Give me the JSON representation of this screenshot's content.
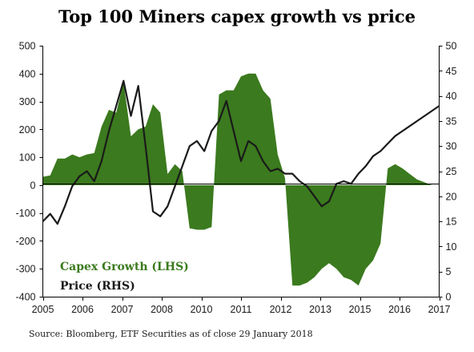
{
  "chart_data": {
    "type": "area",
    "title": "Top 100 Miners capex growth vs price",
    "source": "Source: Bloomberg, ETF Securities as of close 29 January 2018",
    "x_ticks": [
      "2005",
      "2006",
      "2007",
      "2008",
      "2010",
      "2011",
      "2012",
      "2013",
      "2015",
      "2016",
      "2017"
    ],
    "left_axis": {
      "ylim": [
        -400,
        500
      ],
      "ticks": [
        "500",
        "400",
        "300",
        "200",
        "100",
        "0",
        "-100",
        "-200",
        "-300",
        "-400"
      ]
    },
    "right_axis": {
      "ylim": [
        0,
        50
      ],
      "ticks": [
        "50",
        "45",
        "40",
        "35",
        "30",
        "25",
        "20",
        "15",
        "10",
        "5",
        "0"
      ]
    },
    "grid": false,
    "legend_position": "bottom-left",
    "colors": {
      "capex": "#3b7a1e",
      "price": "#1a1a1a",
      "capex_label": "#3b7a1e",
      "price_label": "#1a1a1a"
    },
    "series": [
      {
        "name": "Capex Growth (LHS)",
        "axis": "left",
        "x": [
          0,
          0.25,
          0.5,
          0.75,
          1,
          1.25,
          1.5,
          1.75,
          2,
          2.25,
          2.5,
          2.75,
          3,
          3.25,
          3.5,
          3.75,
          4,
          4.25,
          4.5,
          4.75,
          5,
          5.25,
          5.5,
          5.75,
          6,
          6.25,
          6.5,
          6.75,
          7,
          7.25,
          7.5,
          7.75,
          8,
          8.25,
          8.5,
          8.75,
          9,
          9.25,
          9.5,
          9.75,
          10,
          10.25,
          10.5,
          10.75,
          11,
          11.25,
          11.5,
          11.75,
          12,
          12.25,
          12.5,
          12.75,
          13,
          13.25,
          13.5
        ],
        "values": [
          30,
          35,
          95,
          95,
          110,
          100,
          110,
          115,
          210,
          270,
          260,
          370,
          175,
          200,
          210,
          290,
          260,
          40,
          75,
          50,
          -155,
          -160,
          -160,
          -150,
          325,
          340,
          340,
          390,
          400,
          400,
          340,
          310,
          110,
          25,
          -360,
          -360,
          -350,
          -330,
          -300,
          -280,
          -300,
          -330,
          -340,
          -360,
          -300,
          -270,
          -210,
          60,
          75,
          60,
          40,
          20,
          10,
          0,
          0
        ]
      },
      {
        "name": "Price (RHS)",
        "axis": "right",
        "x": [
          0,
          0.25,
          0.5,
          0.75,
          1,
          1.25,
          1.5,
          1.75,
          2,
          2.25,
          2.5,
          2.75,
          3,
          3.25,
          3.5,
          3.75,
          4,
          4.25,
          4.5,
          4.75,
          5,
          5.25,
          5.5,
          5.75,
          6,
          6.25,
          6.5,
          6.75,
          7,
          7.25,
          7.5,
          7.75,
          8,
          8.25,
          8.5,
          8.75,
          9,
          9.25,
          9.5,
          9.75,
          10,
          10.25,
          10.5,
          10.75,
          11,
          11.25,
          11.5,
          11.75,
          12,
          12.25,
          12.5,
          12.75,
          13,
          13.25,
          13.5
        ],
        "values": [
          15,
          16.5,
          14.5,
          18,
          22,
          24,
          25,
          23,
          27,
          33,
          38,
          43,
          36,
          42,
          30,
          17,
          16,
          18,
          22,
          26,
          30,
          31,
          29,
          33,
          35,
          39,
          33,
          27,
          31,
          30,
          27,
          25,
          25.5,
          24.5,
          24.5,
          23,
          22,
          20,
          18,
          19,
          22.5,
          23,
          22.5,
          24.5,
          26,
          28,
          29,
          30.5,
          32,
          33,
          34,
          35,
          36,
          37,
          38
        ]
      }
    ]
  }
}
